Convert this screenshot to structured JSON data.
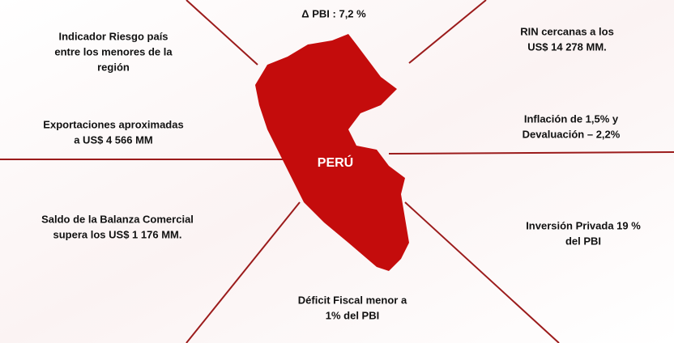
{
  "map_label": "PERÚ",
  "labels": [
    {
      "lines": [
        "Δ PBI : 7,2 %"
      ]
    },
    {
      "lines": [
        "Indicador Riesgo país",
        "entre los menores de la",
        "región"
      ]
    },
    {
      "lines": [
        "RIN cercanas a los",
        "US$ 14 278 MM."
      ]
    },
    {
      "lines": [
        "Exportaciones aproximadas",
        "a US$ 4 566 MM"
      ]
    },
    {
      "lines": [
        "Inflación de 1,5%  y",
        "Devaluación – 2,2%"
      ]
    },
    {
      "lines": [
        "Saldo de la Balanza Comercial",
        "supera los  US$ 1 176 MM."
      ]
    },
    {
      "lines": [
        "Inversión Privada 19 %",
        "del PBI"
      ]
    },
    {
      "lines": [
        "Déficit Fiscal menor  a",
        "1% del PBI"
      ]
    }
  ]
}
